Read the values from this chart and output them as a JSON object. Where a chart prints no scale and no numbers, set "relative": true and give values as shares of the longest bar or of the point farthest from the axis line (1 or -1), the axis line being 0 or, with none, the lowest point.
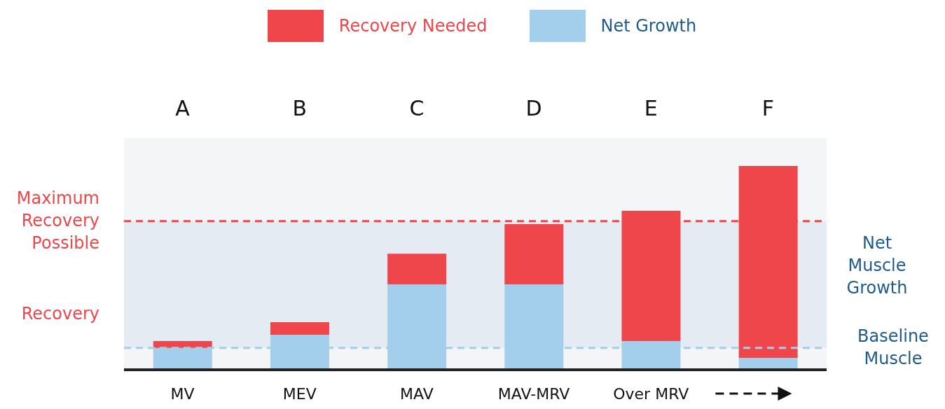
{
  "chart_data": {
    "type": "bar",
    "stacked": true,
    "relative": true,
    "legend": "top",
    "ylabel": "Recovery",
    "categories": [
      "A",
      "B",
      "C",
      "D",
      "E",
      "F"
    ],
    "series": [
      {
        "name": "Net Growth",
        "color": "#a3cfec",
        "values": [
          0.107,
          0.172,
          0.419,
          0.419,
          0.141,
          0.058
        ]
      },
      {
        "name": "Recovery Needed",
        "color": "#ef464b",
        "values": [
          0.034,
          0.062,
          0.151,
          0.296,
          0.639,
          0.942
        ]
      }
    ],
    "ref_lines": [
      {
        "axis": "y",
        "value": 0.729,
        "label": "Maximum Recovery Possible",
        "color": "#ef464b",
        "line_style": "dashed"
      },
      {
        "axis": "y",
        "value": 0.107,
        "label": "Baseline Muscle",
        "color": "#a3cfec",
        "line_style": "dashed"
      }
    ],
    "bands": [
      {
        "axis": "y",
        "from": 0.107,
        "to": 0.729,
        "label": "Net Muscle Growth",
        "color": "#e4ebf2"
      }
    ],
    "annotations": [
      "MV",
      "MEV",
      "MAV",
      "MAV-MRV",
      "Over MRV"
    ]
  }
}
